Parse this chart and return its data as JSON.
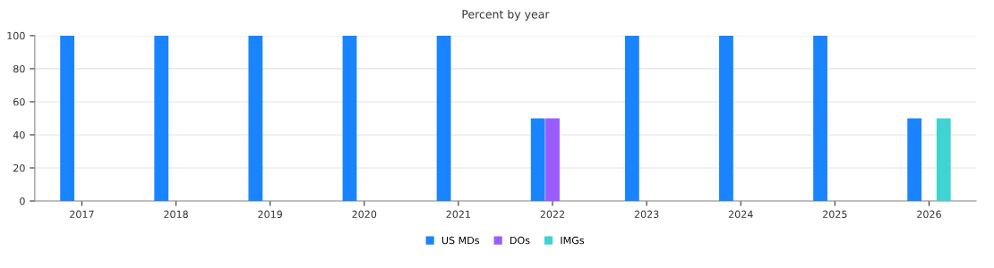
{
  "chart_data": {
    "type": "bar",
    "title": "Percent by year",
    "categories": [
      "2017",
      "2018",
      "2019",
      "2020",
      "2021",
      "2022",
      "2023",
      "2024",
      "2025",
      "2026"
    ],
    "series": [
      {
        "name": "US MDs",
        "color": "#1a84ff",
        "values": [
          100,
          100,
          100,
          100,
          100,
          50,
          100,
          100,
          100,
          50
        ]
      },
      {
        "name": "DOs",
        "color": "#9b5cff",
        "values": [
          0,
          0,
          0,
          0,
          0,
          50,
          0,
          0,
          0,
          0
        ]
      },
      {
        "name": "IMGs",
        "color": "#3fd3d3",
        "values": [
          0,
          0,
          0,
          0,
          0,
          0,
          0,
          0,
          0,
          50
        ]
      }
    ],
    "ylim": [
      0,
      100
    ],
    "yticks": [
      0,
      20,
      40,
      60,
      80,
      100
    ],
    "grid": "y",
    "legend": "bottom"
  }
}
